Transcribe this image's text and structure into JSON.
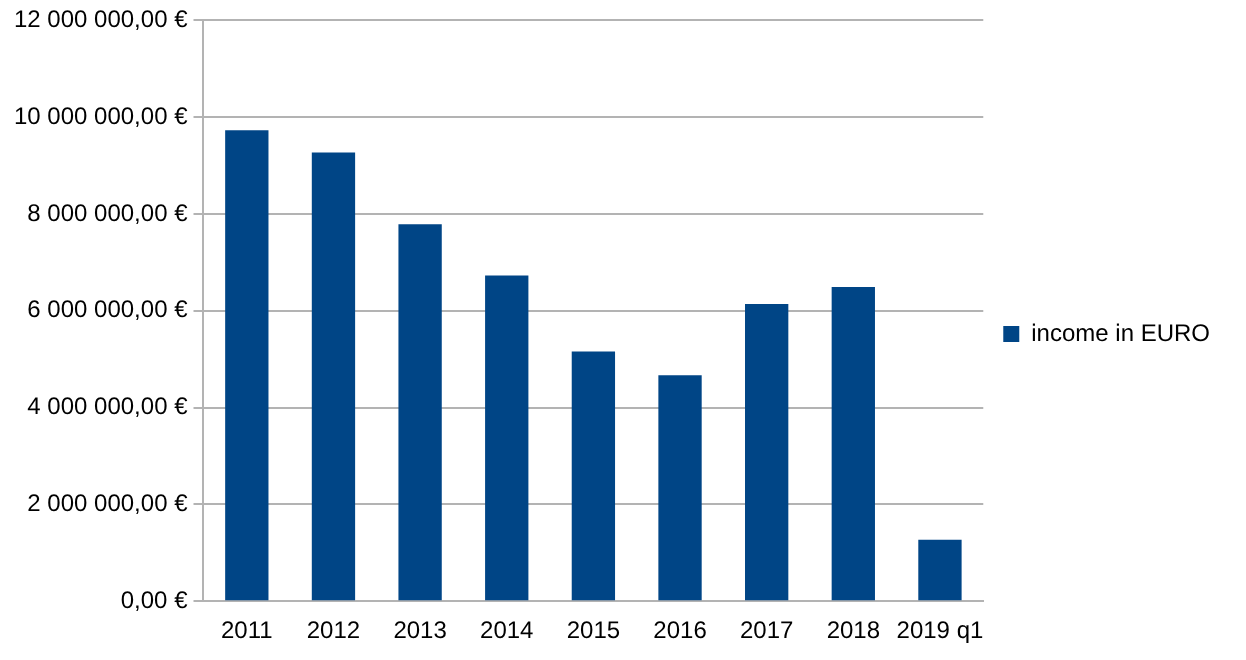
{
  "chart_data": {
    "type": "bar",
    "categories": [
      "2011",
      "2012",
      "2013",
      "2014",
      "2015",
      "2016",
      "2017",
      "2018",
      "2019 q1"
    ],
    "series": [
      {
        "name": "income in EURO",
        "color": "#004586",
        "values": [
          9730000,
          9270000,
          7790000,
          6730000,
          5160000,
          4670000,
          6140000,
          6490000,
          1270000
        ]
      }
    ],
    "ylim": [
      0,
      12000000
    ],
    "yticks": [
      {
        "value": 0,
        "label": "0,00 €"
      },
      {
        "value": 2000000,
        "label": "2 000 000,00 €"
      },
      {
        "value": 4000000,
        "label": "4 000 000,00 €"
      },
      {
        "value": 6000000,
        "label": "6 000 000,00 €"
      },
      {
        "value": 8000000,
        "label": "8 000 000,00 €"
      },
      {
        "value": 10000000,
        "label": "10 000 000,00 €"
      },
      {
        "value": 12000000,
        "label": "12 000 000,00 €"
      }
    ],
    "grid": "y",
    "legend": "right"
  }
}
